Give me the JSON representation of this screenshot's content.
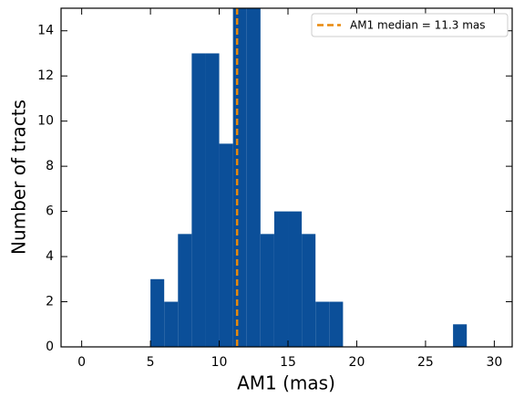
{
  "chart_data": {
    "type": "histogram",
    "xlabel": "AM1 (mas)",
    "ylabel": "Number of tracts",
    "bins": [
      5,
      6,
      7,
      8,
      9,
      10,
      11,
      12,
      13,
      14,
      15,
      16,
      17,
      18,
      19,
      20,
      21,
      22,
      23,
      24,
      25,
      26,
      27,
      28
    ],
    "values": [
      3,
      2,
      5,
      13,
      13,
      9,
      15,
      15,
      5,
      6,
      6,
      5,
      2,
      2,
      0,
      0,
      0,
      0,
      0,
      0,
      0,
      0,
      1
    ],
    "color": "#0b4f99",
    "median": {
      "value": 11.3,
      "label": "AM1 median = 11.3 mas",
      "color": "#e8890c"
    },
    "xlim": [
      -1.5,
      31.3
    ],
    "ylim": [
      0,
      15
    ],
    "xticks": [
      0,
      5,
      10,
      15,
      20,
      25,
      30
    ],
    "yticks": [
      0,
      2,
      4,
      6,
      8,
      10,
      12,
      14
    ],
    "legend": "upper right"
  }
}
